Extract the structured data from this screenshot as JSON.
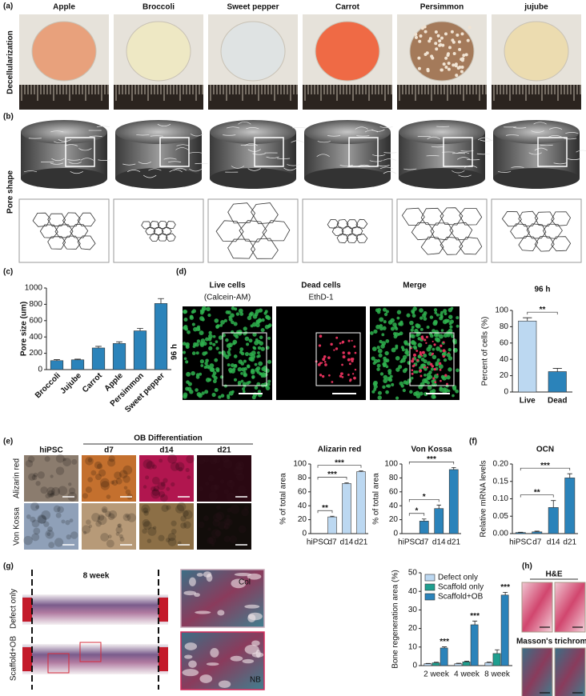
{
  "panel_labels": [
    "(a)",
    "(b)",
    "(c)",
    "(d)",
    "(e)",
    "(f)",
    "(g)",
    "(h)"
  ],
  "decellularization": {
    "row_label": "Decellularization",
    "samples": [
      "Apple",
      "Broccoli",
      "Sweet pepper",
      "Carrot",
      "Persimmon",
      "jujube"
    ]
  },
  "pore_shape": {
    "row_label": "Pore shape"
  },
  "viability": {
    "row_label": "96 h",
    "columns": [
      {
        "title": "Live cells",
        "stain": "(Calcein-AM)"
      },
      {
        "title": "Dead cells",
        "stain": "EthD-1"
      },
      {
        "title": "Merge"
      }
    ]
  },
  "osteo_images": {
    "group": "OB Differentiation",
    "columns": [
      "hiPSC",
      "d7",
      "d14",
      "d21"
    ],
    "rows": [
      "Alizarin red",
      "Von Kossa"
    ]
  },
  "histology": {
    "title": "8 week",
    "rows": [
      "Defect only",
      "Scaffold+OB"
    ],
    "insets": [
      "Col",
      "NB"
    ]
  },
  "he_masson": {
    "labels": [
      "H&E",
      "Masson's trichrome"
    ]
  },
  "chart_data": [
    {
      "type": "bar",
      "y_label": "Pore size (um)",
      "categories": [
        "Broccoli",
        "Jujube",
        "Carrot",
        "Apple",
        "Persimmon",
        "Sweet pepper"
      ],
      "values": [
        110,
        120,
        265,
        320,
        475,
        810
      ],
      "errors": [
        12,
        8,
        20,
        20,
        30,
        60
      ],
      "color": "#2b83ba",
      "ylim": [
        0,
        1000
      ],
      "yticks": [
        0,
        200,
        400,
        600,
        800,
        1000
      ]
    },
    {
      "type": "bar",
      "title": "96 h",
      "y_label": "Percent of cells (%)",
      "categories": [
        "Live",
        "Dead"
      ],
      "values": [
        87,
        25
      ],
      "errors": [
        4,
        4
      ],
      "colors": [
        "#bcd8f1",
        "#2b83ba"
      ],
      "ylim": [
        0,
        100
      ],
      "yticks": [
        0,
        20,
        40,
        60,
        80,
        100
      ],
      "annotations": [
        "**"
      ]
    },
    {
      "type": "bar",
      "title": "Alizarin red",
      "y_label": "% of total area",
      "categories": [
        "hiPSC",
        "d7",
        "d14",
        "d21"
      ],
      "values": [
        0,
        24,
        72,
        89
      ],
      "errors": [
        0,
        1,
        1,
        1
      ],
      "color": "#bcd8f1",
      "ylim": [
        0,
        100
      ],
      "yticks": [
        0,
        20,
        40,
        60,
        80,
        100
      ],
      "annotations": [
        "**",
        "***",
        "***"
      ]
    },
    {
      "type": "bar",
      "title": "Von Kossa",
      "y_label": "% of total area",
      "categories": [
        "hiPSC",
        "d7",
        "d14",
        "d21"
      ],
      "values": [
        0,
        18,
        36,
        92
      ],
      "errors": [
        0,
        3,
        5,
        3
      ],
      "color": "#2b83ba",
      "ylim": [
        0,
        100
      ],
      "yticks": [
        0,
        20,
        40,
        60,
        80,
        100
      ],
      "annotations": [
        "*",
        "*",
        "***"
      ]
    },
    {
      "type": "bar",
      "title": "OCN",
      "y_label": "Relative mRNA levels",
      "categories": [
        "hiPSC",
        "d7",
        "d14",
        "d21"
      ],
      "values": [
        0.003,
        0.005,
        0.075,
        0.16
      ],
      "errors": [
        0.001,
        0.002,
        0.02,
        0.012
      ],
      "color": "#2b83ba",
      "ylim": [
        0,
        0.2
      ],
      "yticks": [
        {
          "value": 0,
          "label": "0.00"
        },
        {
          "value": 0.05,
          "label": "0.05"
        },
        {
          "value": 0.1,
          "label": "0.10"
        },
        {
          "value": 0.15,
          "label": "0.15"
        },
        {
          "value": 0.2,
          "label": "0.20"
        }
      ],
      "annotations": [
        "**",
        "***"
      ]
    },
    {
      "type": "grouped_bar",
      "y_label": "Bone regeneration area (%)",
      "categories": [
        "2 week",
        "4 week",
        "8 week"
      ],
      "series": [
        {
          "name": "Defect only",
          "color": "#bcd8f1",
          "values": [
            1,
            1,
            1.5
          ],
          "errors": [
            0.2,
            0.3,
            0.4
          ]
        },
        {
          "name": "Scaffold only",
          "color": "#1f9e8f",
          "values": [
            1.5,
            2,
            6.5
          ],
          "errors": [
            0.3,
            0.4,
            2
          ]
        },
        {
          "name": "Scaffold+OB",
          "color": "#2b83ba",
          "values": [
            9.5,
            22,
            38
          ],
          "errors": [
            0.6,
            2,
            1.5
          ]
        }
      ],
      "ylim": [
        0,
        50
      ],
      "yticks": [
        0,
        10,
        20,
        30,
        40,
        50
      ],
      "legend": "top-left",
      "annotations": [
        "***",
        "***",
        "***"
      ]
    }
  ]
}
